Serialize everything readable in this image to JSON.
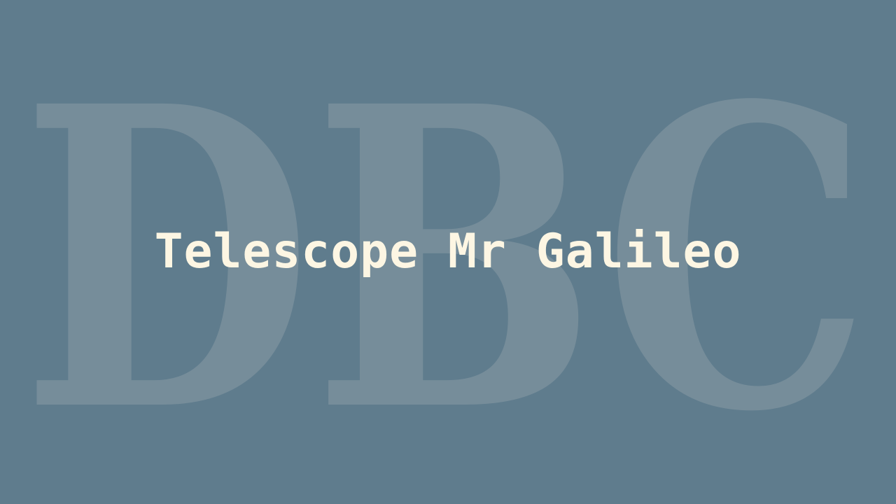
{
  "background": {
    "monogram": "DBC",
    "color": "#5f7c8d",
    "monogram_color": "#768d9a"
  },
  "title": {
    "text": "Telescope Mr Galileo",
    "color": "#fdf6e3"
  }
}
